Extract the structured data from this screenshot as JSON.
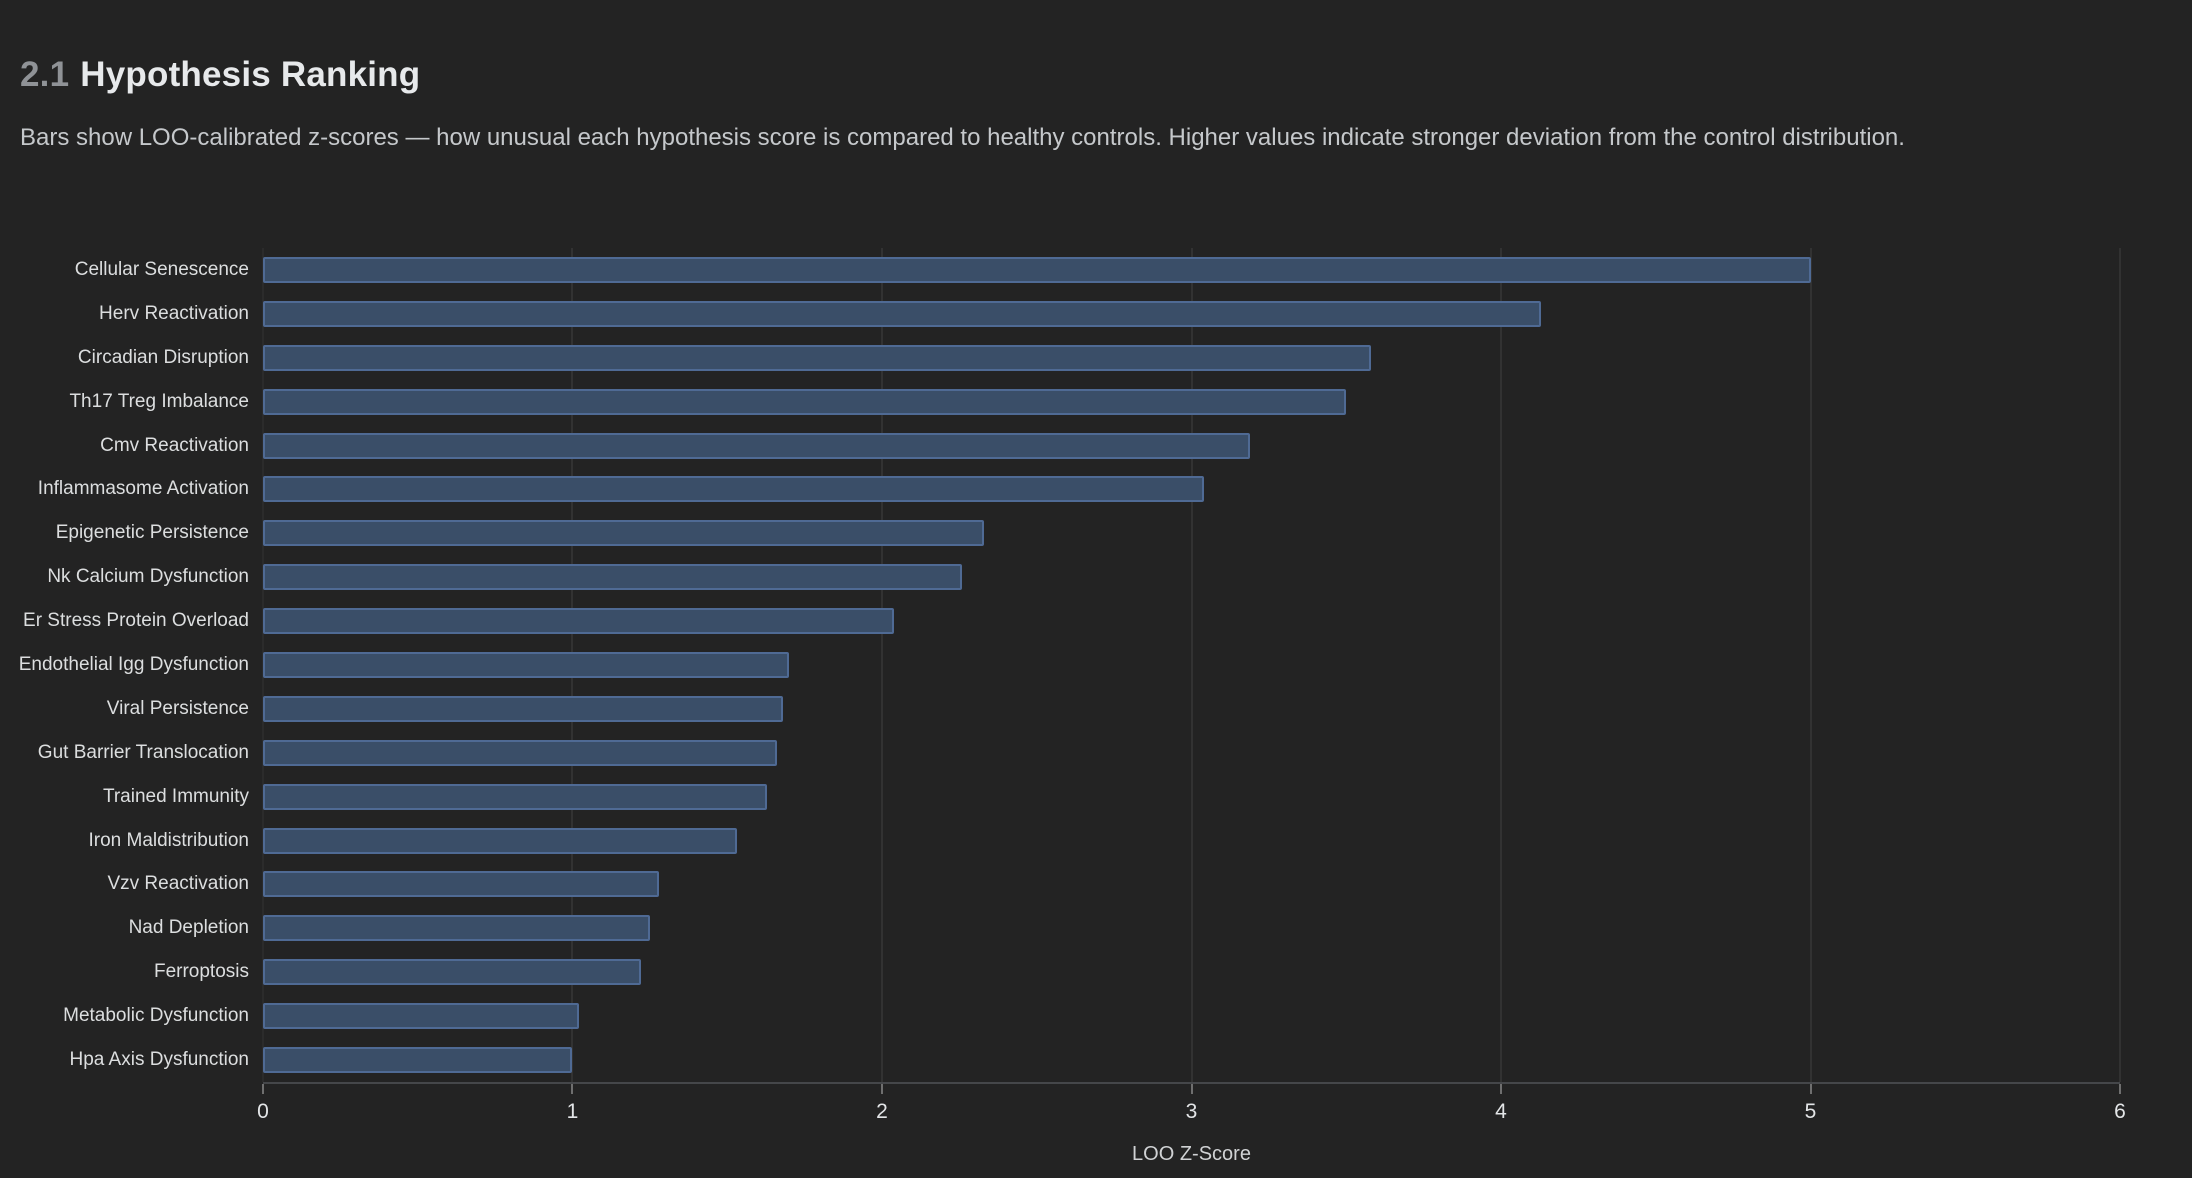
{
  "header": {
    "section_number": "2.1",
    "title": "Hypothesis Ranking"
  },
  "subtitle": "Bars show LOO-calibrated z-scores — how unusual each hypothesis score is compared to healthy controls. Higher values indicate stronger deviation from the control distribution.",
  "colors": {
    "background": "#232323",
    "bar_fill": "#3a4e68",
    "bar_border": "#4f6a94",
    "title_text": "#e7e9eb",
    "section_number_text": "#8f9296",
    "subtitle_text": "#c5c8cb",
    "axis_label_text": "#dcdedf"
  },
  "chart_data": {
    "type": "bar",
    "orientation": "horizontal",
    "title": "Hypothesis Ranking",
    "categories": [
      "Cellular Senescence",
      "Herv Reactivation",
      "Circadian Disruption",
      "Th17 Treg Imbalance",
      "Cmv Reactivation",
      "Inflammasome Activation",
      "Epigenetic Persistence",
      "Nk Calcium Dysfunction",
      "Er Stress Protein Overload",
      "Endothelial Igg Dysfunction",
      "Viral Persistence",
      "Gut Barrier Translocation",
      "Trained Immunity",
      "Iron Maldistribution",
      "Vzv Reactivation",
      "Nad Depletion",
      "Ferroptosis",
      "Metabolic Dysfunction",
      "Hpa Axis Dysfunction"
    ],
    "values": [
      5.0,
      4.13,
      3.58,
      3.5,
      3.19,
      3.04,
      2.33,
      2.26,
      2.04,
      1.7,
      1.68,
      1.66,
      1.63,
      1.53,
      1.28,
      1.25,
      1.22,
      1.02,
      1.0
    ],
    "xlabel": "LOO Z-Score",
    "ylabel": "",
    "xlim": [
      0,
      6
    ],
    "xticks": [
      0,
      1,
      2,
      3,
      4,
      5,
      6
    ],
    "grid": true,
    "legend": false
  }
}
